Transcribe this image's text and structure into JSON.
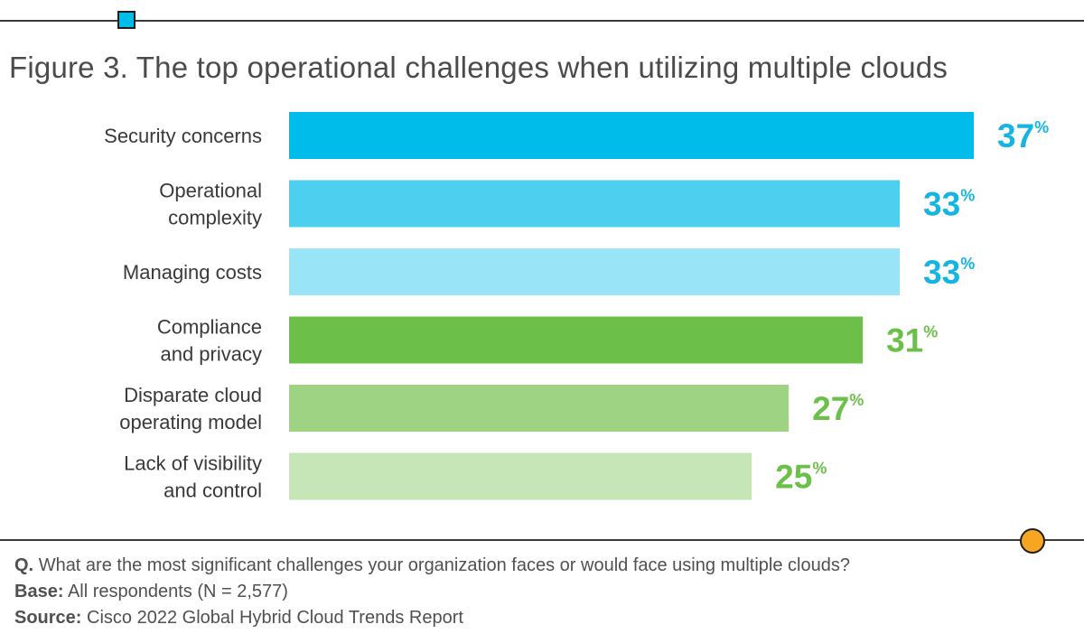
{
  "figure_title": "Figure 3. The top operational challenges when utilizing multiple clouds",
  "chart_data": {
    "type": "bar",
    "orientation": "horizontal",
    "title": "Figure 3. The top operational challenges when utilizing multiple clouds",
    "categories": [
      [
        "Security concerns"
      ],
      [
        "Operational",
        "complexity"
      ],
      [
        "Managing costs"
      ],
      [
        "Compliance",
        "and privacy"
      ],
      [
        "Disparate cloud",
        "operating model"
      ],
      [
        "Lack of visibility",
        "and control"
      ]
    ],
    "values": [
      37,
      33,
      33,
      31,
      27,
      25
    ],
    "value_labels": [
      "37",
      "33",
      "33",
      "31",
      "27",
      "25"
    ],
    "value_suffix": "%",
    "bar_colors": [
      "#00bceb",
      "#4dcfef",
      "#9ae4f7",
      "#6cc04a",
      "#9dd383",
      "#c7e6b7"
    ],
    "label_colors": [
      "#14b4e3",
      "#14b4e3",
      "#14b4e3",
      "#6cc04a",
      "#6cc04a",
      "#6cc04a"
    ],
    "xlim": [
      0,
      37
    ],
    "xlabel": "",
    "ylabel": ""
  },
  "notes": {
    "question_label": "Q.",
    "question_text": "What are the most significant challenges your organization faces or would face using multiple clouds?",
    "base_label": "Base:",
    "base_text": "All respondents (N = 2,577)",
    "source_label": "Source:",
    "source_text": "Cisco 2022 Global Hybrid Cloud Trends Report"
  },
  "decor_colors": {
    "rule": "#3a3a3c",
    "square": "#00bceb",
    "circle": "#f6a623"
  }
}
